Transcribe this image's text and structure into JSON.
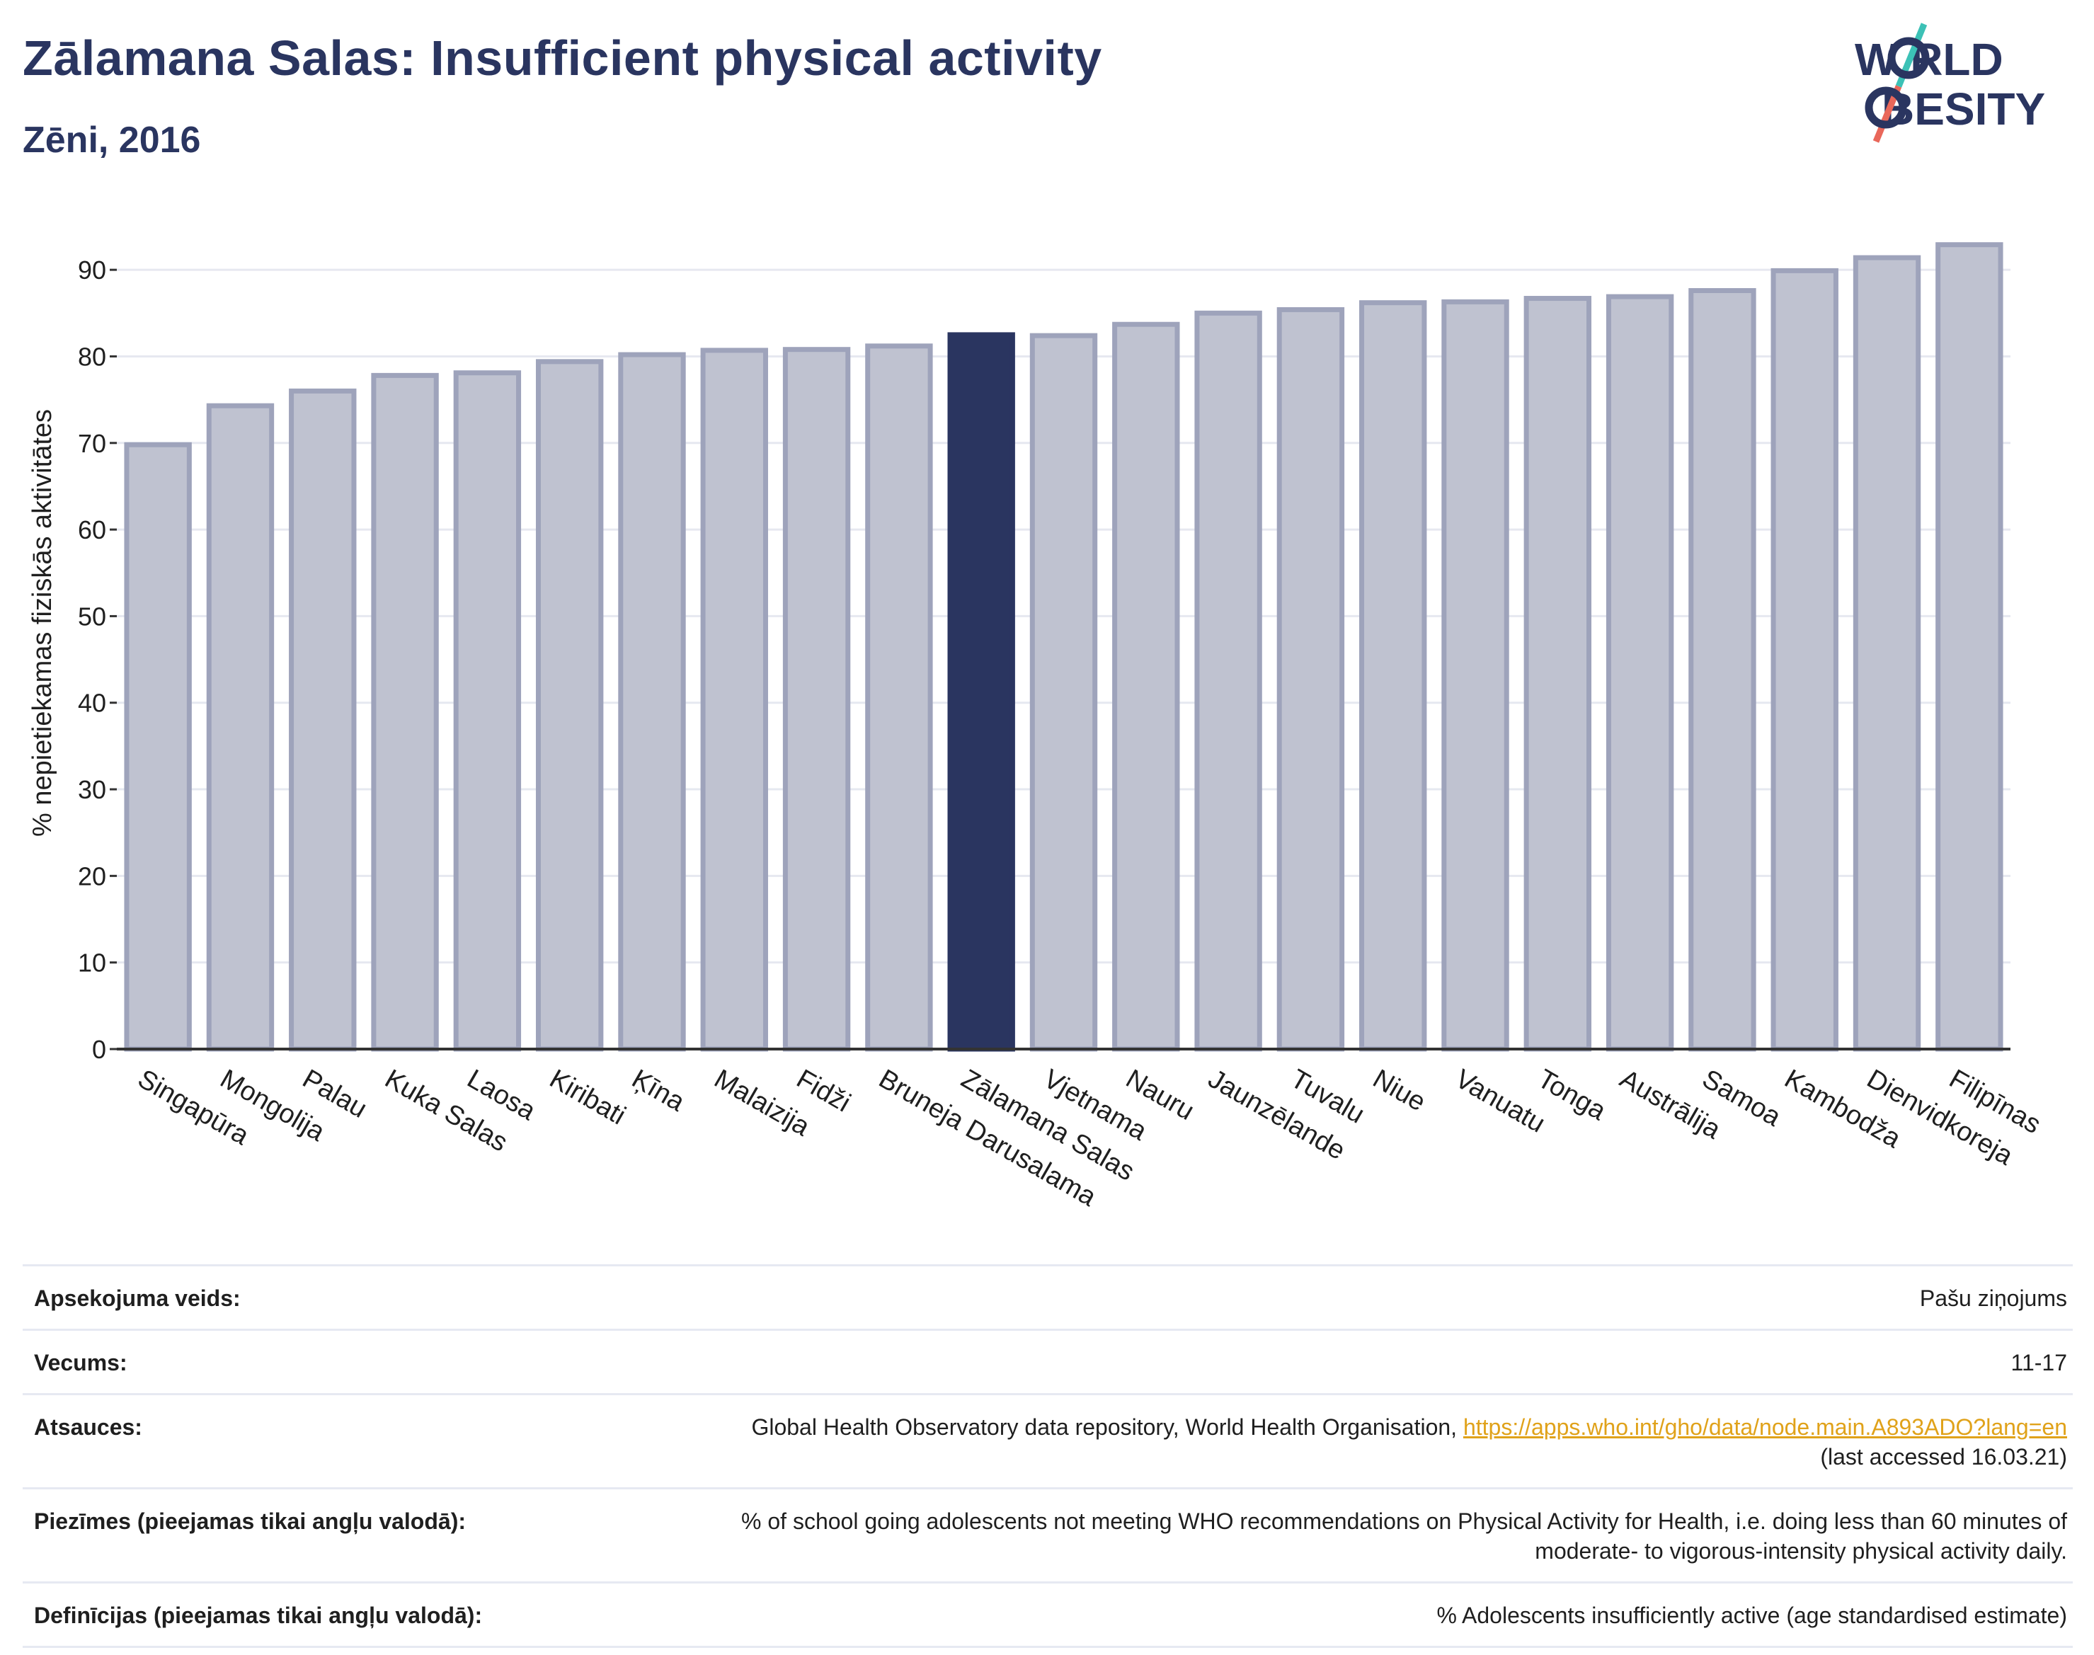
{
  "header": {
    "title": "Zālamana Salas: Insufficient physical activity",
    "subtitle": "Zēni, 2016"
  },
  "logo": {
    "line1": "W RLD",
    "line2": "BESITY",
    "colors": {
      "text": "#2a3560",
      "slash_top": "#3cc1b6",
      "slash_bottom": "#e9675a"
    }
  },
  "chart_data": {
    "type": "bar",
    "ylabel": "% nepietiekamas fiziskās aktivitātes",
    "ylim": [
      0,
      95
    ],
    "yticks": [
      0,
      10,
      20,
      30,
      40,
      50,
      60,
      70,
      80,
      90
    ],
    "grid": true,
    "categories": [
      "Singapūra",
      "Mongolija",
      "Palau",
      "Kuka Salas",
      "Laosa",
      "Kiribati",
      "Ķīna",
      "Malaizija",
      "Fidži",
      "Bruneja Darusalama",
      "Zālamana Salas",
      "Vjetnama",
      "Nauru",
      "Jaunzēlande",
      "Tuvalu",
      "Niue",
      "Vanuatu",
      "Tonga",
      "Austrālija",
      "Samoa",
      "Kambodža",
      "Dienvidkoreja",
      "Filipīnas"
    ],
    "values": [
      69.8,
      74.3,
      76.0,
      77.8,
      78.1,
      79.4,
      80.2,
      80.7,
      80.8,
      81.2,
      82.5,
      82.4,
      83.7,
      85.0,
      85.4,
      86.2,
      86.3,
      86.7,
      86.9,
      87.6,
      89.9,
      91.4,
      92.9
    ],
    "highlight": "Zālamana Salas",
    "colors": {
      "bar": "#bfc2d0",
      "bar_edge": "#9ea3bb",
      "highlight": "#2a3560",
      "grid": "#e6e8f0",
      "axis": "#333333"
    }
  },
  "info_table": [
    {
      "key": "Apsekojuma veids:",
      "value": "Pašu ziņojums"
    },
    {
      "key": "Vecums:",
      "value": "11-17"
    },
    {
      "key": "Atsauces:",
      "value": "Global Health Observatory data repository, World Health Organisation, ",
      "link": "https://apps.who.int/gho/data/node.main.A893ADO?lang=en",
      "value2": "(last accessed 16.03.21)"
    },
    {
      "key": "Piezīmes (pieejamas tikai angļu valodā):",
      "value": "% of school going adolescents not meeting WHO recommendations on Physical Activity for Health, i.e. doing less than 60 minutes of",
      "value2": "moderate- to vigorous-intensity physical activity daily."
    },
    {
      "key": "Definīcijas (pieejamas tikai angļu valodā):",
      "value": "% Adolescents insufficiently active (age standardised estimate)"
    }
  ]
}
